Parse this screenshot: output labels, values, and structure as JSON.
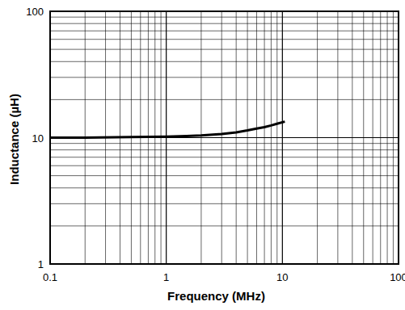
{
  "chart_data": {
    "type": "line",
    "x_label": "Frequency (MHz)",
    "y_label": "Inductance (µH)",
    "log": true,
    "grid": true,
    "xlim": [
      0.1,
      100
    ],
    "ylim": [
      1,
      100
    ],
    "xticks": [
      0.1,
      1,
      10,
      100
    ],
    "yticks": [
      1,
      10,
      100
    ],
    "series": [
      {
        "color": "#000000",
        "x": [
          0.1,
          0.2,
          0.5,
          1,
          1.5,
          2,
          3,
          4,
          5,
          6,
          7,
          8,
          9,
          10.5
        ],
        "values": [
          10.0,
          10.0,
          10.1,
          10.2,
          10.3,
          10.4,
          10.7,
          11.0,
          11.4,
          11.8,
          12.1,
          12.5,
          12.9,
          13.4
        ]
      }
    ]
  }
}
